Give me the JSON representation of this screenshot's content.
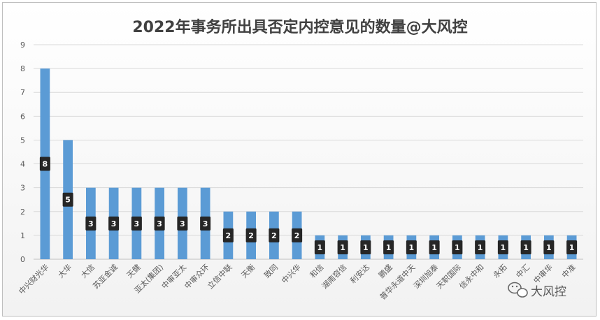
{
  "chart_data": {
    "type": "bar",
    "title": "2022年事务所出具否定内控意见的数量@大风控",
    "categories": [
      "中兴财光华",
      "大华",
      "大信",
      "苏亚金诚",
      "天健",
      "亚太(集团)",
      "中审亚太",
      "中审众环",
      "立信中联",
      "天衡",
      "致同",
      "中兴华",
      "和信",
      "湖南容信",
      "利安达",
      "鹏盛",
      "普华永道中天",
      "深圳旭泰",
      "天职国际",
      "信永中和",
      "永拓",
      "中汇",
      "中审华",
      "中准"
    ],
    "values": [
      8,
      5,
      3,
      3,
      3,
      3,
      3,
      3,
      2,
      2,
      2,
      2,
      1,
      1,
      1,
      1,
      1,
      1,
      1,
      1,
      1,
      1,
      1,
      1
    ],
    "yticks": [
      0,
      1,
      2,
      3,
      4,
      5,
      6,
      7,
      8,
      9
    ],
    "ylim": [
      0,
      9
    ],
    "grid": true,
    "legend": "none",
    "xlabel": "",
    "ylabel": "",
    "data_labels": true,
    "colors": {
      "bar": "#5b9bd5",
      "grid": "#d9d9d9",
      "label_bg": "#262626",
      "title": "#404040"
    }
  },
  "watermark": {
    "text": "大风控",
    "icon": "wechat-icon"
  }
}
